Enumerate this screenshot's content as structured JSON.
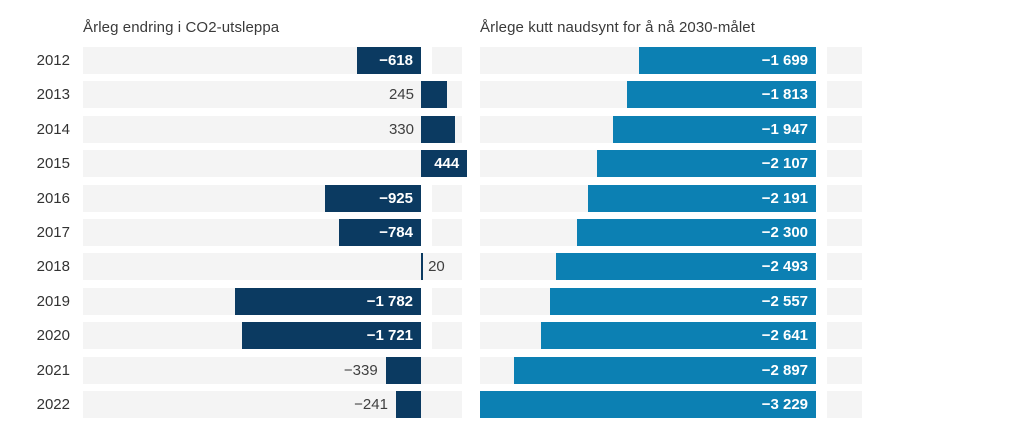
{
  "chart_data": [
    {
      "type": "bar",
      "orientation": "horizontal",
      "title": "Årleg endring i CO2-utsleppa",
      "categories": [
        "2012",
        "2013",
        "2014",
        "2015",
        "2016",
        "2017",
        "2018",
        "2019",
        "2020",
        "2021",
        "2022"
      ],
      "values": [
        -618,
        245,
        330,
        444,
        -925,
        -784,
        20,
        -1782,
        -1721,
        -339,
        -241
      ],
      "labels": [
        "−618",
        "245",
        "330",
        "444",
        "−925",
        "−784",
        "20",
        "−1 782",
        "−1 721",
        "−339",
        "−241"
      ],
      "xlim": [
        -3250,
        400
      ],
      "bar_color": "#0b3a61",
      "track_color": "#f4f4f4",
      "label_color_inside": "#ffffff",
      "label_color_outside": "#3f3f3f",
      "grid": false,
      "legend": "none"
    },
    {
      "type": "bar",
      "orientation": "horizontal",
      "title": "Årlege kutt naudsynt for å nå 2030-målet",
      "categories": [
        "2012",
        "2013",
        "2014",
        "2015",
        "2016",
        "2017",
        "2018",
        "2019",
        "2020",
        "2021",
        "2022"
      ],
      "values": [
        -1699,
        -1813,
        -1947,
        -2107,
        -2191,
        -2300,
        -2493,
        -2557,
        -2641,
        -2897,
        -3229
      ],
      "labels": [
        "−1 699",
        "−1 813",
        "−1 947",
        "−2 107",
        "−2 191",
        "−2 300",
        "−2 493",
        "−2 557",
        "−2 641",
        "−2 897",
        "−3 229"
      ],
      "xlim": [
        -3250,
        450
      ],
      "bar_color": "#0c80b3",
      "track_color": "#f4f4f4",
      "label_color_inside": "#ffffff",
      "label_color_outside": "#3f3f3f",
      "grid": false,
      "legend": "none"
    }
  ]
}
